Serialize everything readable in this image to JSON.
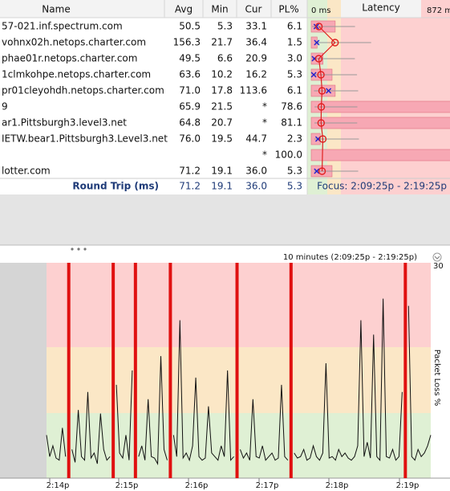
{
  "columns": [
    "Name",
    "Avg",
    "Min",
    "Cur",
    "PL%"
  ],
  "latency_header": {
    "min_label": "0 ms",
    "title": "Latency",
    "max_label": "872 ms"
  },
  "rows": [
    {
      "name": "57-021.inf.spectrum.com",
      "avg": "50.5",
      "min": "5.3",
      "cur": "33.1",
      "pl": "6.1"
    },
    {
      "name": "vohnx02h.netops.charter.com",
      "avg": "156.3",
      "min": "21.7",
      "cur": "36.4",
      "pl": "1.5"
    },
    {
      "name": "phae01r.netops.charter.com",
      "avg": "49.5",
      "min": "6.6",
      "cur": "20.9",
      "pl": "3.0"
    },
    {
      "name": "1clmkohpe.netops.charter.com",
      "avg": "63.6",
      "min": "10.2",
      "cur": "16.2",
      "pl": "5.3"
    },
    {
      "name": "pr01cleyohdh.netops.charter.com",
      "avg": "71.0",
      "min": "17.8",
      "cur": "113.6",
      "pl": "6.1"
    },
    {
      "name": "9",
      "avg": "65.9",
      "min": "21.5",
      "cur": "*",
      "pl": "78.6"
    },
    {
      "name": "ar1.Pittsburgh3.level3.net",
      "avg": "64.8",
      "min": "20.7",
      "cur": "*",
      "pl": "81.1"
    },
    {
      "name": "IETW.bear1.Pittsburgh3.Level3.net",
      "avg": "76.0",
      "min": "19.5",
      "cur": "44.7",
      "pl": "2.3"
    },
    {
      "cur": "*",
      "pl": "100.0"
    },
    {
      "name": "lotter.com",
      "avg": "71.2",
      "min": "19.1",
      "cur": "36.0",
      "pl": "5.3"
    }
  ],
  "round_trip": {
    "label": "Round Trip (ms)",
    "avg": "71.2",
    "min": "19.1",
    "cur": "36.0",
    "pl": "5.3",
    "focus": "Focus: 2:09:25p - 2:19:25p"
  },
  "timeline": {
    "range_label": "10 minutes (2:09:25p - 2:19:25p)",
    "pl_max_label": "30",
    "pl_axis_title": "Packet Loss %",
    "x_labels": [
      "2:14p",
      "2:15p",
      "2:16p",
      "2:17p",
      "2:18p",
      "2:19p"
    ],
    "samples": [
      60,
      30,
      45,
      28,
      25,
      70,
      30,
      null,
      40,
      22,
      95,
      30,
      25,
      120,
      28,
      35,
      20,
      90,
      40,
      25,
      30,
      null,
      130,
      35,
      28,
      60,
      25,
      150,
      null,
      30,
      45,
      25,
      110,
      30,
      28,
      20,
      170,
      40,
      25,
      null,
      60,
      30,
      220,
      28,
      35,
      25,
      45,
      140,
      30,
      25,
      28,
      100,
      35,
      30,
      25,
      45,
      30,
      150,
      25,
      30,
      null,
      40,
      28,
      35,
      25,
      110,
      30,
      28,
      45,
      25,
      30,
      35,
      25,
      28,
      130,
      30,
      25,
      null,
      35,
      28,
      30,
      40,
      25,
      28,
      45,
      30,
      25,
      35,
      160,
      28,
      30,
      25,
      40,
      30,
      35,
      28,
      25,
      30,
      45,
      220,
      30,
      50,
      28,
      200,
      30,
      25,
      250,
      30,
      28,
      40,
      25,
      30,
      120,
      null,
      240,
      30,
      25,
      40,
      30,
      35,
      45,
      60
    ]
  }
}
